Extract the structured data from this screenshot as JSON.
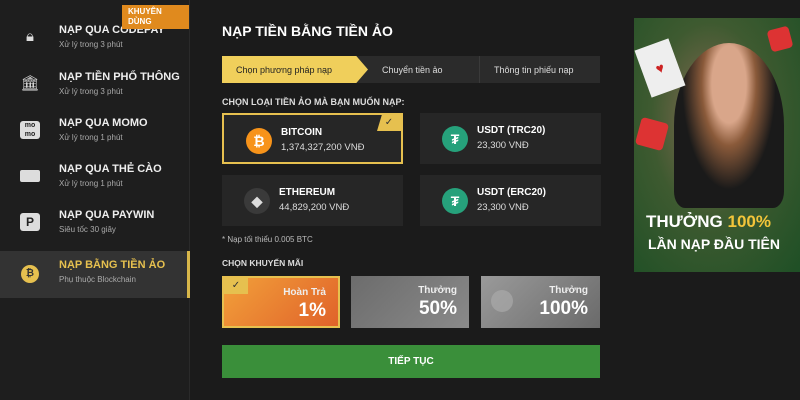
{
  "sidebar": {
    "badge": "KHUYÊN DÙNG",
    "items": [
      {
        "title": "NẠP QUA CODEPAY",
        "sub": "Xử lý trong 3 phút",
        "icon": "lock-icon"
      },
      {
        "title": "NẠP TIỀN PHỔ THÔNG",
        "sub": "Xử lý trong 3 phút",
        "icon": "bank-icon"
      },
      {
        "title": "NẠP QUA MOMO",
        "sub": "Xử lý trong 1 phút",
        "icon": "momo-icon"
      },
      {
        "title": "NẠP QUA THẺ CÀO",
        "sub": "Xử lý trong 1 phút",
        "icon": "card-icon"
      },
      {
        "title": "NẠP QUA PAYWIN",
        "sub": "Siêu tốc 30 giây",
        "icon": "paywin-icon"
      },
      {
        "title": "NẠP BẰNG TIỀN ẢO",
        "sub": "Phụ thuộc Blockchain",
        "icon": "bitcoin-icon",
        "active": true
      }
    ]
  },
  "main": {
    "title": "NẠP TIỀN BẰNG TIỀN ẢO",
    "steps": [
      "Chọn phương pháp nạp",
      "Chuyển tiền ảo",
      "Thông tin phiếu nạp"
    ],
    "crypto_label": "CHỌN LOẠI TIỀN ẢO MÀ BẠN MUỐN NẠP:",
    "cryptos": [
      {
        "name": "BITCOIN",
        "value": "1,374,327,200 VNĐ",
        "selected": true
      },
      {
        "name": "USDT (TRC20)",
        "value": "23,300 VNĐ"
      },
      {
        "name": "ETHEREUM",
        "value": "44,829,200 VNĐ"
      },
      {
        "name": "USDT (ERC20)",
        "value": "23,300 VNĐ"
      }
    ],
    "note": "* Nạp tối thiểu 0.005 BTC",
    "promo_label": "CHỌN KHUYẾN MÃI",
    "promos": [
      {
        "label": "Hoàn Trả",
        "value": "1%",
        "selected": true
      },
      {
        "label": "Thưởng",
        "value": "50%"
      },
      {
        "label": "Thưởng",
        "value": "100%"
      }
    ],
    "continue": "TIẾP TỤC"
  },
  "banner": {
    "line1a": "THƯỞNG ",
    "line1b": "100%",
    "line2": "LẦN NẠP ĐẦU TIÊN"
  },
  "colors": {
    "accent": "#e6c04f",
    "button": "#3a8f3a",
    "bitcoin": "#f7931a",
    "tether": "#26a17b"
  }
}
